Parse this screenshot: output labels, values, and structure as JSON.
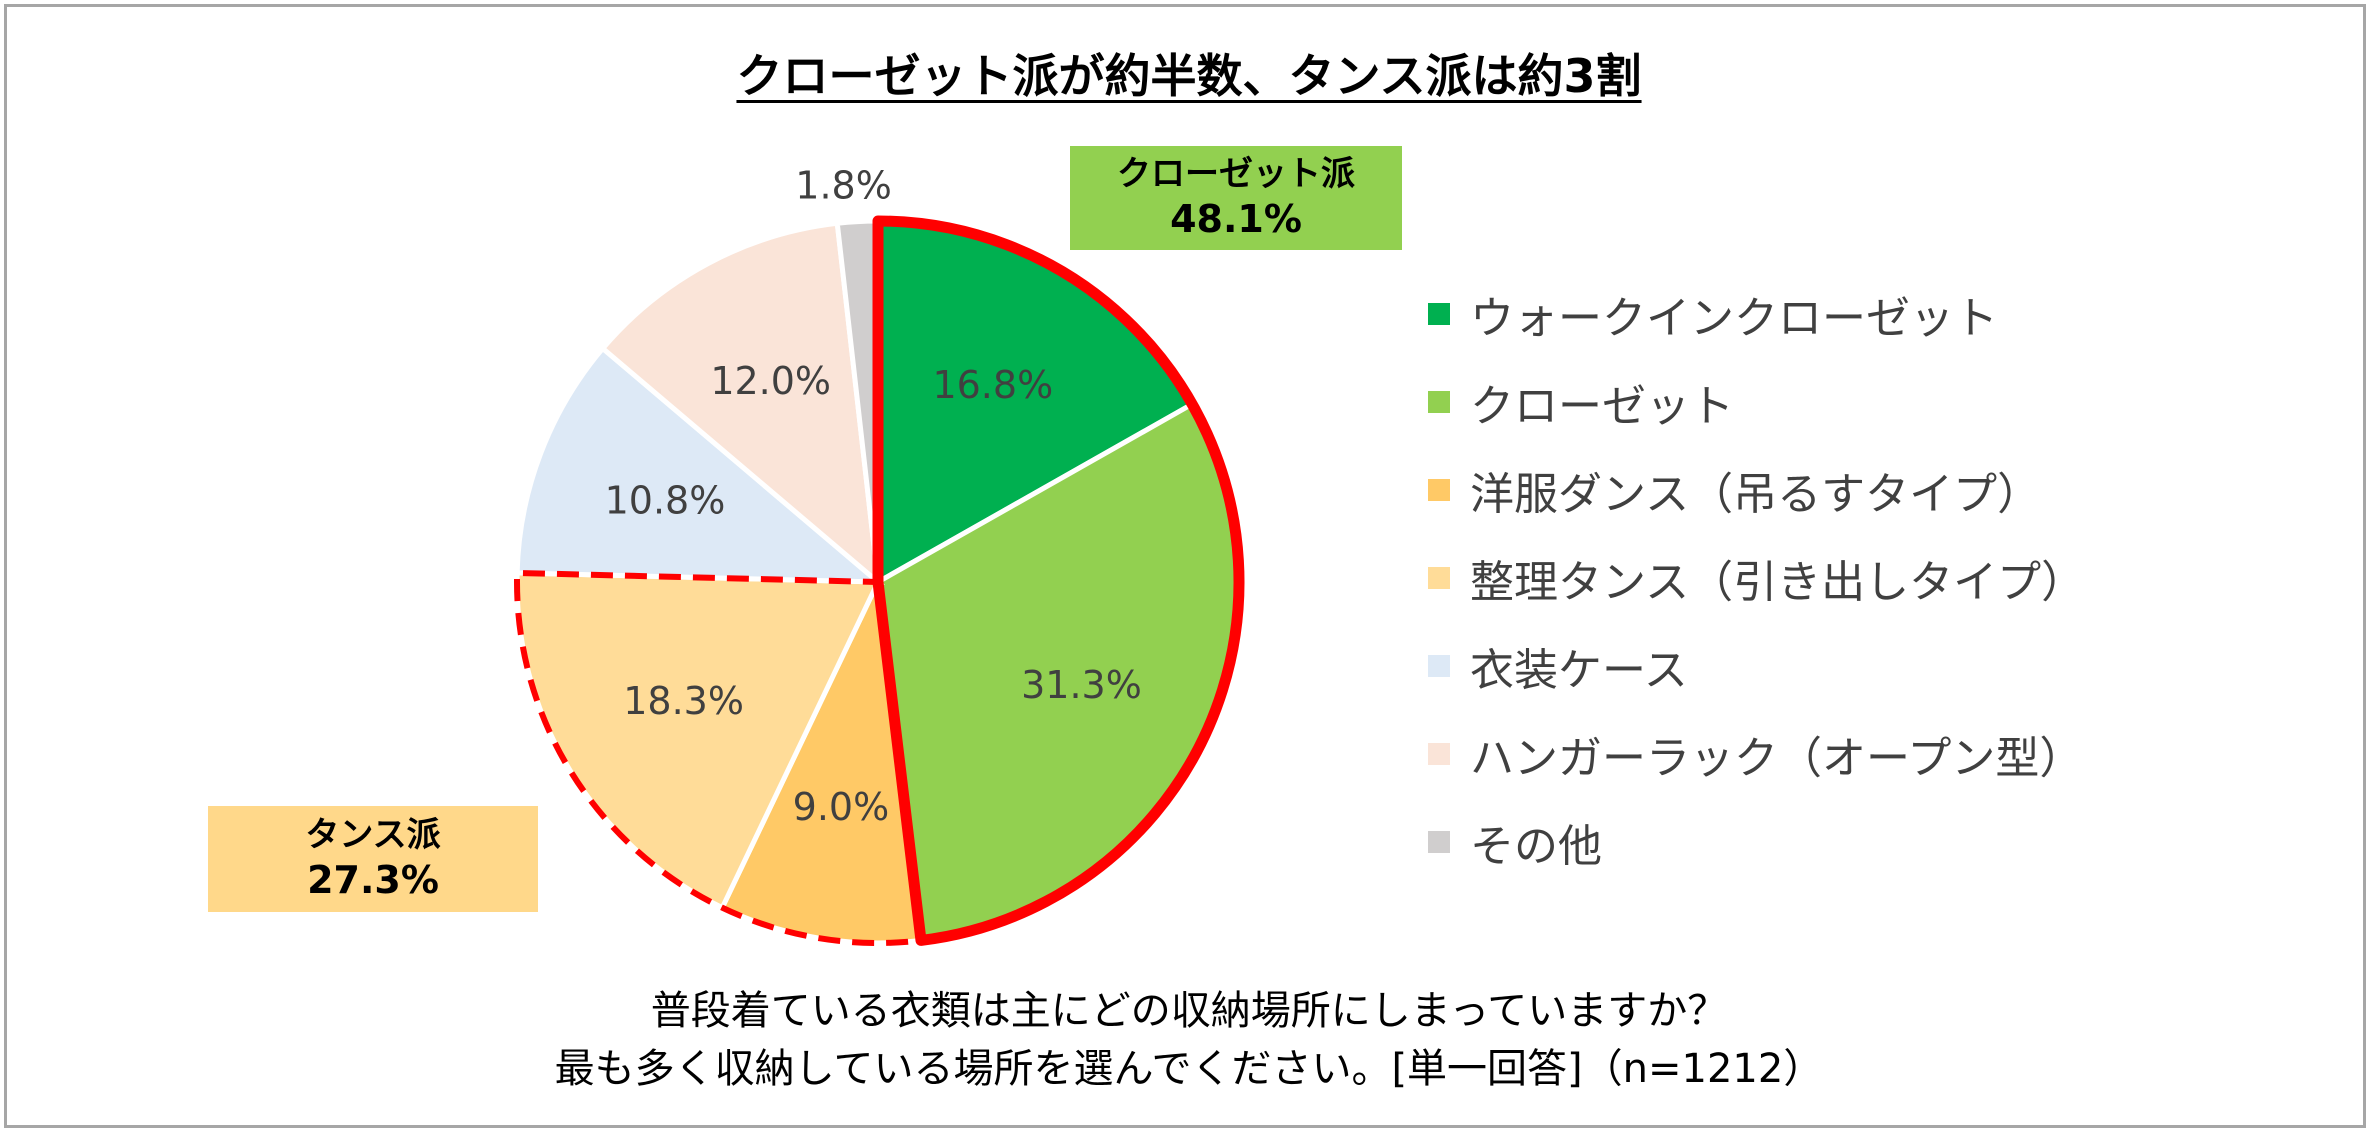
{
  "title": "クローゼット派が約半数、タンス派は約3割",
  "chart_data": {
    "type": "pie",
    "start_angle_deg": 0,
    "direction": "clockwise",
    "slices": [
      {
        "label": "ウォークインクローゼット",
        "value": 16.8,
        "value_label": "16.8%",
        "color": "#00b050"
      },
      {
        "label": "クローゼット",
        "value": 31.3,
        "value_label": "31.3%",
        "color": "#92d050"
      },
      {
        "label": "洋服ダンス（吊るすタイプ）",
        "value": 9.0,
        "value_label": "9.0%",
        "color": "#ffc966"
      },
      {
        "label": "整理タンス（引き出しタイプ）",
        "value": 18.3,
        "value_label": "18.3%",
        "color": "#ffdc98"
      },
      {
        "label": "衣装ケース",
        "value": 10.8,
        "value_label": "10.8%",
        "color": "#dde9f6"
      },
      {
        "label": "ハンガーラック（オープン型）",
        "value": 12.0,
        "value_label": "12.0%",
        "color": "#fae4d8"
      },
      {
        "label": "その他",
        "value": 1.8,
        "value_label": "1.8%",
        "color": "#d0cece"
      }
    ],
    "groups": [
      {
        "name": "クローゼット派",
        "value_label": "48.1%",
        "members": [
          0,
          1
        ],
        "outline": "solid",
        "outline_color": "#ff0000",
        "fill": "#92d050"
      },
      {
        "name": "タンス派",
        "value_label": "27.3%",
        "members": [
          2,
          3
        ],
        "outline": "dashed",
        "outline_color": "#ff0000",
        "fill": "#ffd88a"
      }
    ],
    "legend_position": "right",
    "label_color": "#404040"
  },
  "question": {
    "line1": "普段着ている衣類は主にどの収納場所にしまっていますか？",
    "line2": "最も多く収納している場所を選んでください。[単一回答]（n=1212）"
  }
}
